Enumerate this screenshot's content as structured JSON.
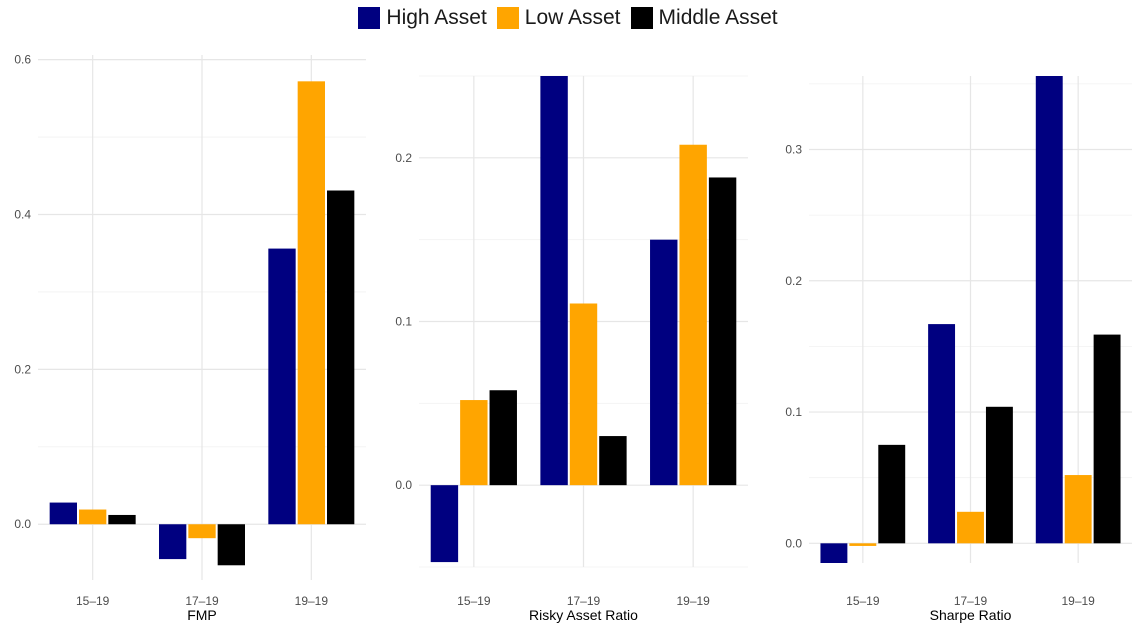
{
  "legend": {
    "items": [
      {
        "label": "High Asset",
        "color": "#000080"
      },
      {
        "label": "Low Asset",
        "color": "#FFA500"
      },
      {
        "label": "Middle Asset",
        "color": "#000000"
      }
    ]
  },
  "chart_data": [
    {
      "type": "bar",
      "xlabel": "FMP",
      "ylabel": "",
      "categories": [
        "15–19",
        "17–19",
        "19–19"
      ],
      "ylim": [
        -0.072,
        0.606
      ],
      "yticks": [
        0.0,
        0.2,
        0.4,
        0.6
      ],
      "ytick_labels": [
        "0.0",
        "0.2",
        "0.4",
        "0.6"
      ],
      "grid": true,
      "series": [
        {
          "name": "High Asset",
          "color": "#000080",
          "values": [
            0.028,
            -0.045,
            0.356
          ]
        },
        {
          "name": "Low Asset",
          "color": "#FFA500",
          "values": [
            0.019,
            -0.018,
            0.572
          ]
        },
        {
          "name": "Middle Asset",
          "color": "#000000",
          "values": [
            0.012,
            -0.053,
            0.431
          ]
        }
      ]
    },
    {
      "type": "bar",
      "xlabel": "Risky Asset Ratio",
      "ylabel": "",
      "categories": [
        "15–19",
        "17–19",
        "19–19"
      ],
      "ylim": [
        -0.05,
        0.25
      ],
      "yticks": [
        0.0,
        0.1,
        0.2
      ],
      "ytick_labels": [
        "0.0",
        "0.1",
        "0.2"
      ],
      "grid": true,
      "series": [
        {
          "name": "High Asset",
          "color": "#000080",
          "values": [
            -0.047,
            0.25,
            0.15
          ]
        },
        {
          "name": "Low Asset",
          "color": "#FFA500",
          "values": [
            0.052,
            0.111,
            0.208
          ]
        },
        {
          "name": "Middle Asset",
          "color": "#000000",
          "values": [
            0.058,
            0.03,
            0.188
          ]
        }
      ]
    },
    {
      "type": "bar",
      "xlabel": "Sharpe Ratio",
      "ylabel": "",
      "categories": [
        "15–19",
        "17–19",
        "19–19"
      ],
      "ylim": [
        -0.015,
        0.356
      ],
      "yticks": [
        0.0,
        0.1,
        0.2,
        0.3
      ],
      "ytick_labels": [
        "0.0",
        "0.1",
        "0.2",
        "0.3"
      ],
      "grid": true,
      "series": [
        {
          "name": "High Asset",
          "color": "#000080",
          "values": [
            -0.015,
            0.167,
            0.356
          ]
        },
        {
          "name": "Low Asset",
          "color": "#FFA500",
          "values": [
            -0.002,
            0.024,
            0.052
          ]
        },
        {
          "name": "Middle Asset",
          "color": "#000000",
          "values": [
            0.075,
            0.104,
            0.159
          ]
        }
      ]
    }
  ]
}
